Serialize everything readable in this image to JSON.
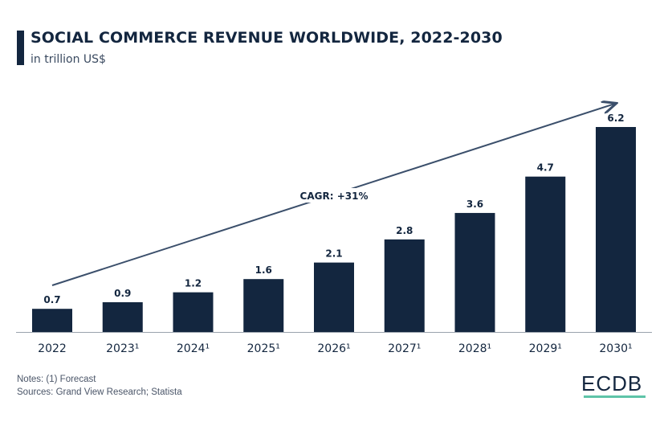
{
  "colors": {
    "bar": "#13263f",
    "text": "#13263f",
    "arrow": "#3b4f6b",
    "logo_underline": "#5ec4a8"
  },
  "chart_data": {
    "type": "bar",
    "title": "SOCIAL COMMERCE REVENUE WORLDWIDE, 2022-2030",
    "subtitle": "in trillion US$",
    "categories": [
      "2022",
      "2023¹",
      "2024¹",
      "2025¹",
      "2026¹",
      "2027¹",
      "2028¹",
      "2029¹",
      "2030¹"
    ],
    "values": [
      0.7,
      0.9,
      1.2,
      1.6,
      2.1,
      2.8,
      3.6,
      4.7,
      6.2
    ],
    "value_labels": [
      "0.7",
      "0.9",
      "1.2",
      "1.6",
      "2.1",
      "2.8",
      "3.6",
      "4.7",
      "6.2"
    ],
    "ylim": [
      0,
      6.2
    ],
    "grid": false,
    "annotation": "CAGR: +31%"
  },
  "notes": "Notes: (1) Forecast",
  "sources": "Sources: Grand View Research; Statista",
  "logo": "ECDB"
}
